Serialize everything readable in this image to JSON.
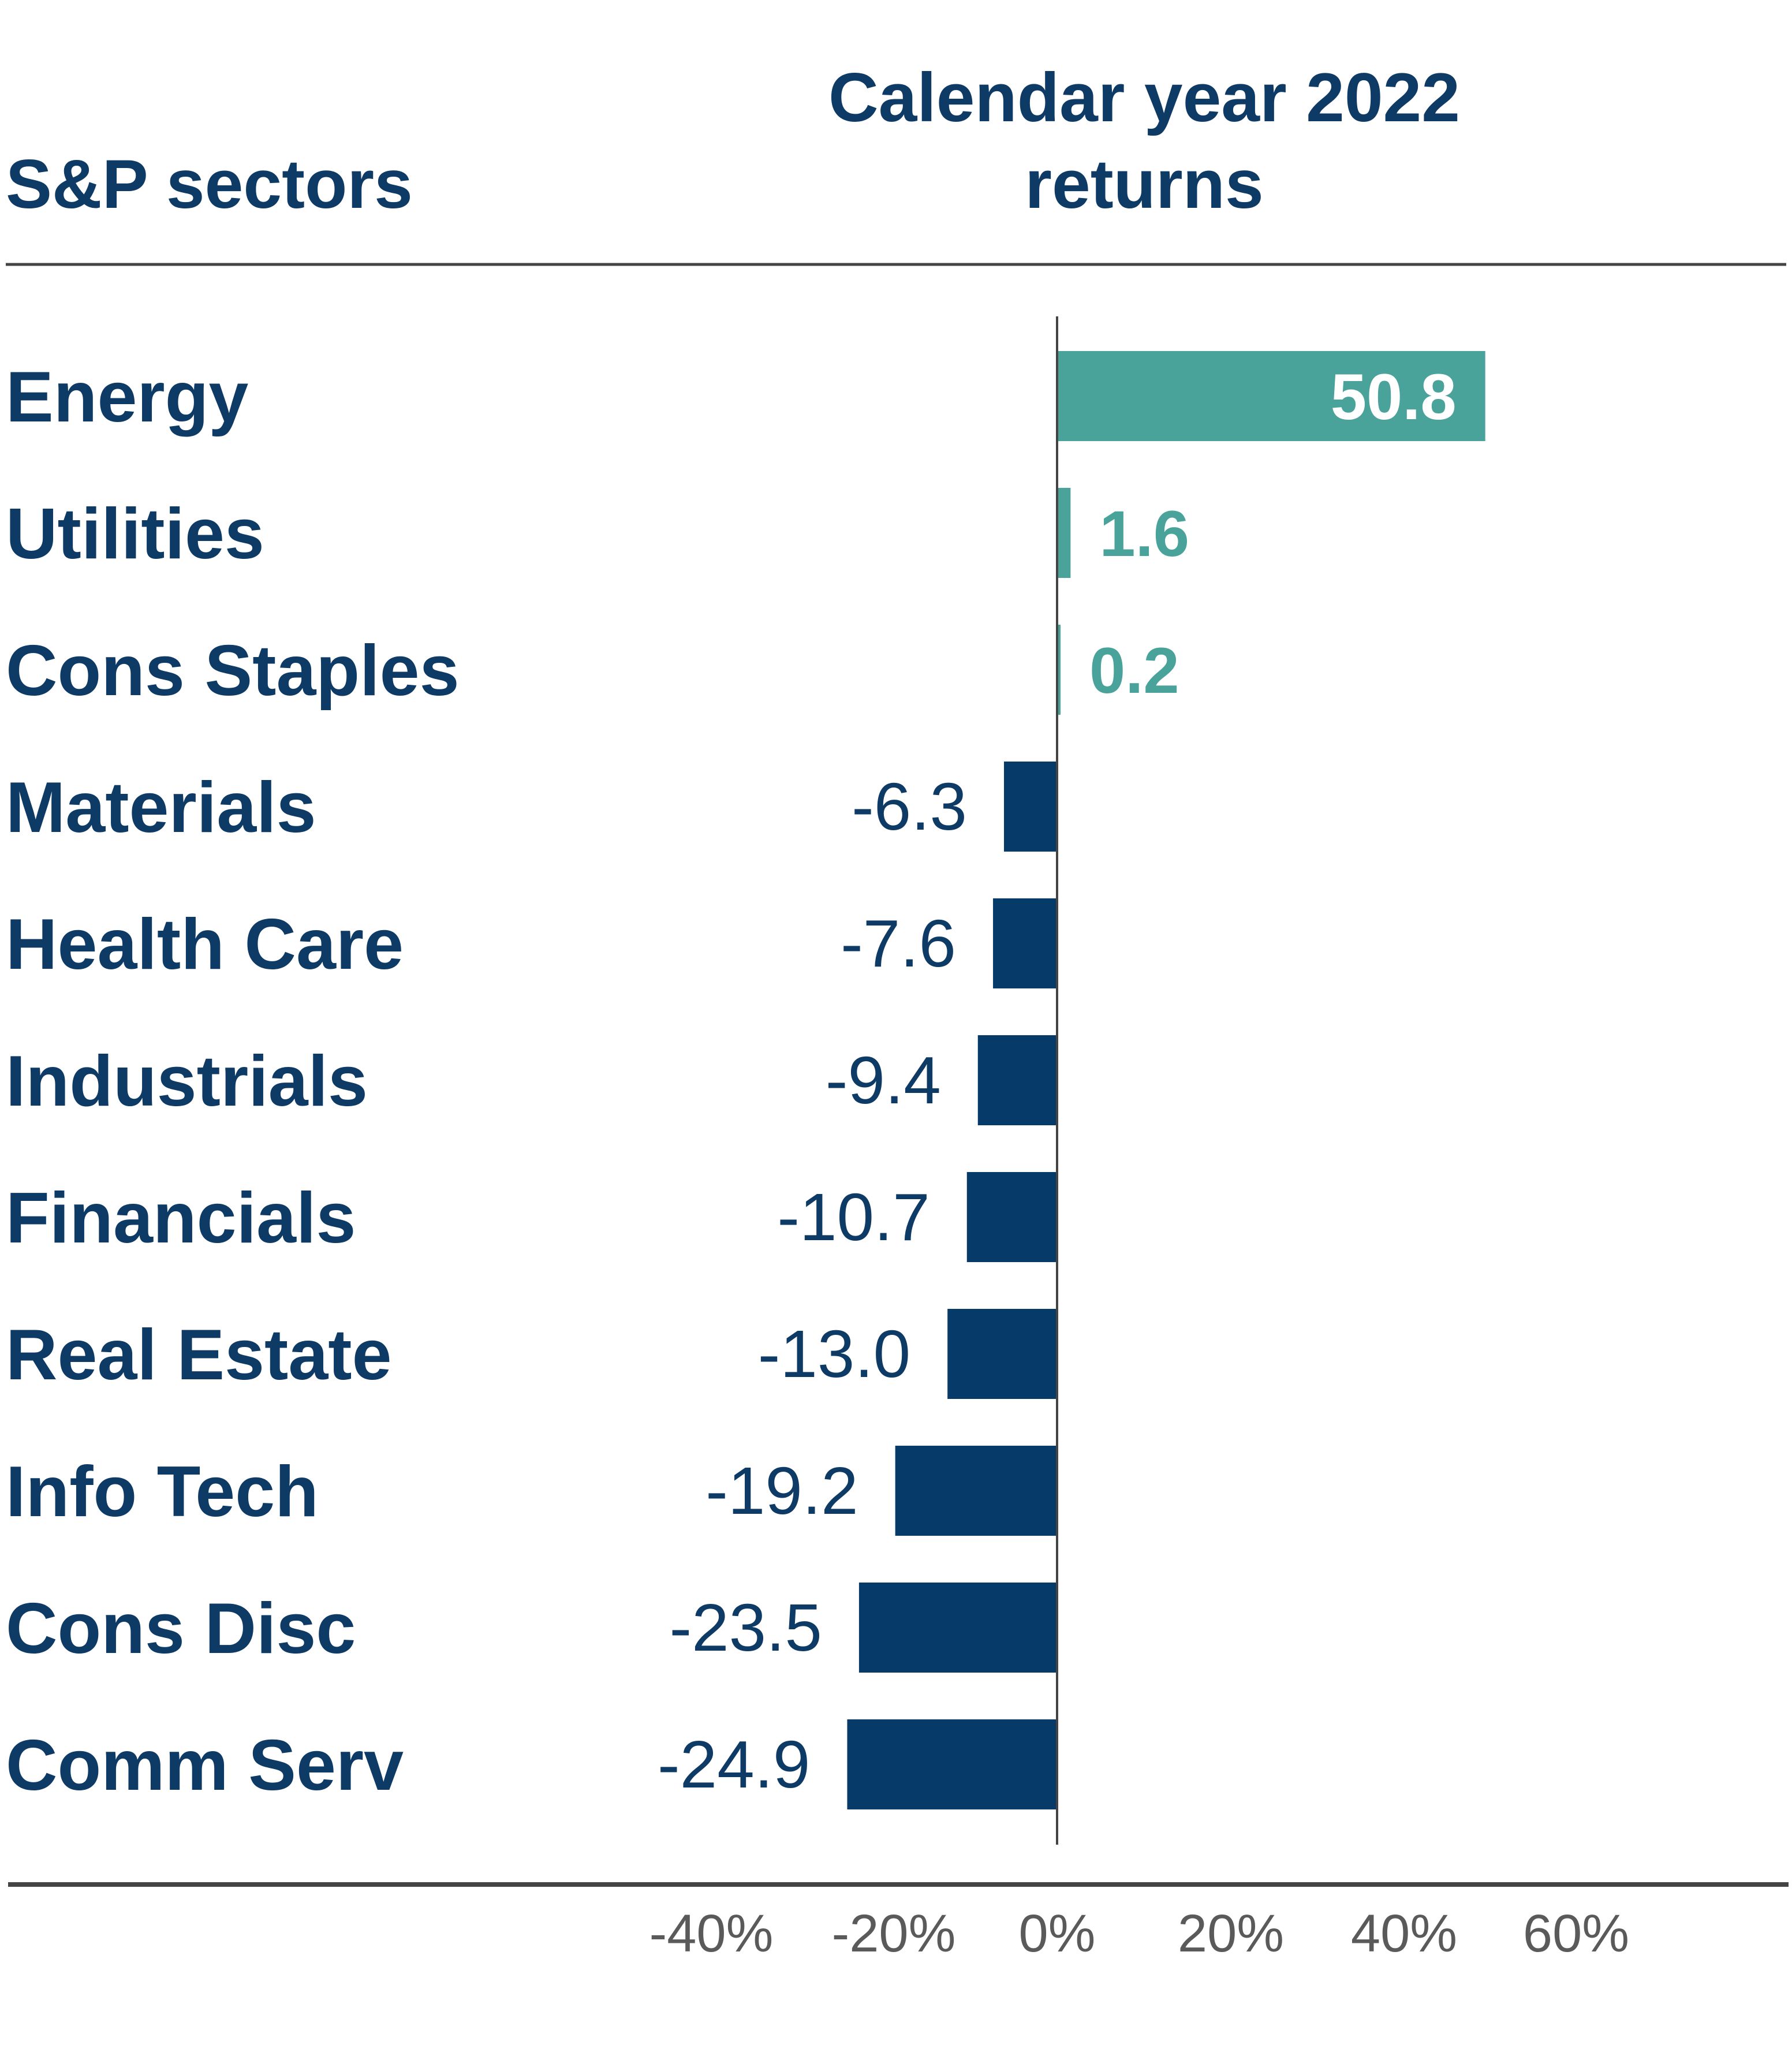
{
  "colors": {
    "text": "#0e3a66",
    "positive_bar": "#4aa39b",
    "negative_bar": "#063a68",
    "rule": "#444444",
    "tick_text": "#5a5a5a"
  },
  "chart_data": {
    "type": "bar",
    "orientation": "horizontal",
    "column_header": "S&P sectors",
    "title_lines": [
      "Calendar year 2022",
      "returns"
    ],
    "categories": [
      "Energy",
      "Utilities",
      "Cons Staples",
      "Materials",
      "Health Care",
      "Industrials",
      "Financials",
      "Real Estate",
      "Info Tech",
      "Cons Disc",
      "Comm Serv"
    ],
    "values": [
      50.8,
      1.6,
      0.2,
      -6.3,
      -7.6,
      -9.4,
      -10.7,
      -13.0,
      -19.2,
      -23.5,
      -24.9
    ],
    "value_labels": [
      "50.8",
      "1.6",
      "0.2",
      "-6.3",
      "-7.6",
      "-9.4",
      "-10.7",
      "-13.0",
      "-19.2",
      "-23.5",
      "-24.9"
    ],
    "x_ticks": [
      -40,
      -20,
      0,
      20,
      40,
      60
    ],
    "x_tick_labels": [
      "-40%",
      "-20%",
      "0%",
      "20%",
      "40%",
      "60%"
    ],
    "xlim": [
      -40,
      60
    ],
    "unit": "%",
    "legend": "none",
    "grid": false
  }
}
